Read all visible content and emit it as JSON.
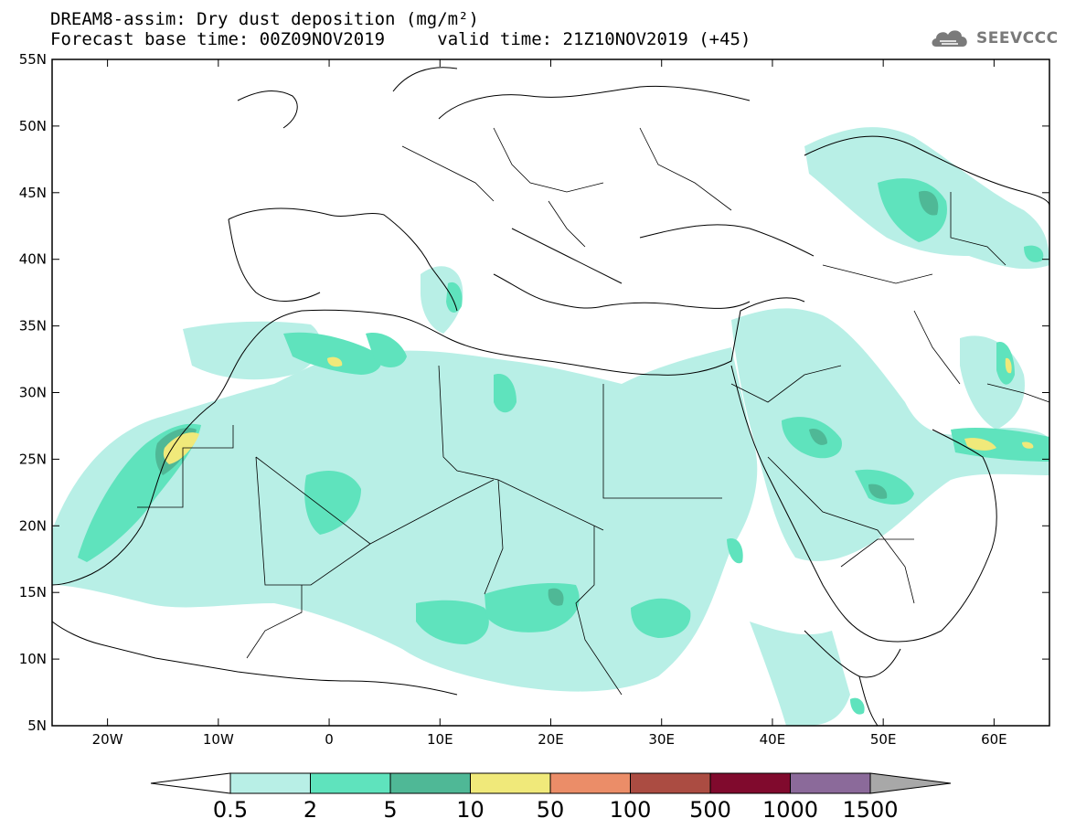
{
  "title": {
    "line1": "DREAM8-assim: Dry dust deposition (mg/m²)",
    "line2_base": "Forecast base time: 00Z09NOV2019",
    "line2_valid": "valid time: 21Z10NOV2019 (+45)"
  },
  "logo": {
    "text": "SEEVCCC",
    "icon": "cloud-icon"
  },
  "map": {
    "lon_range": [
      -25,
      65
    ],
    "lat_range": [
      5,
      55
    ],
    "lon_ticks": [
      {
        "value": -20,
        "label": "20W"
      },
      {
        "value": -10,
        "label": "10W"
      },
      {
        "value": 0,
        "label": "0"
      },
      {
        "value": 10,
        "label": "10E"
      },
      {
        "value": 20,
        "label": "20E"
      },
      {
        "value": 30,
        "label": "30E"
      },
      {
        "value": 40,
        "label": "40E"
      },
      {
        "value": 50,
        "label": "50E"
      },
      {
        "value": 60,
        "label": "60E"
      }
    ],
    "lat_ticks": [
      {
        "value": 55,
        "label": "55N"
      },
      {
        "value": 50,
        "label": "50N"
      },
      {
        "value": 45,
        "label": "45N"
      },
      {
        "value": 40,
        "label": "40N"
      },
      {
        "value": 35,
        "label": "35N"
      },
      {
        "value": 30,
        "label": "30N"
      },
      {
        "value": 25,
        "label": "25N"
      },
      {
        "value": 20,
        "label": "20N"
      },
      {
        "value": 15,
        "label": "15N"
      },
      {
        "value": 10,
        "label": "10N"
      },
      {
        "value": 5,
        "label": "5N"
      }
    ]
  },
  "colorbar": {
    "colors": [
      "#b8efe6",
      "#5fe3bd",
      "#4fb896",
      "#f0e97a",
      "#eb8d68",
      "#ab4c42",
      "#800a2d",
      "#8b6a9a"
    ],
    "below_color": "#ffffff",
    "above_color": "#a8a8a8",
    "labels": [
      "0.5",
      "2",
      "5",
      "10",
      "50",
      "100",
      "500",
      "1000",
      "1500"
    ]
  }
}
